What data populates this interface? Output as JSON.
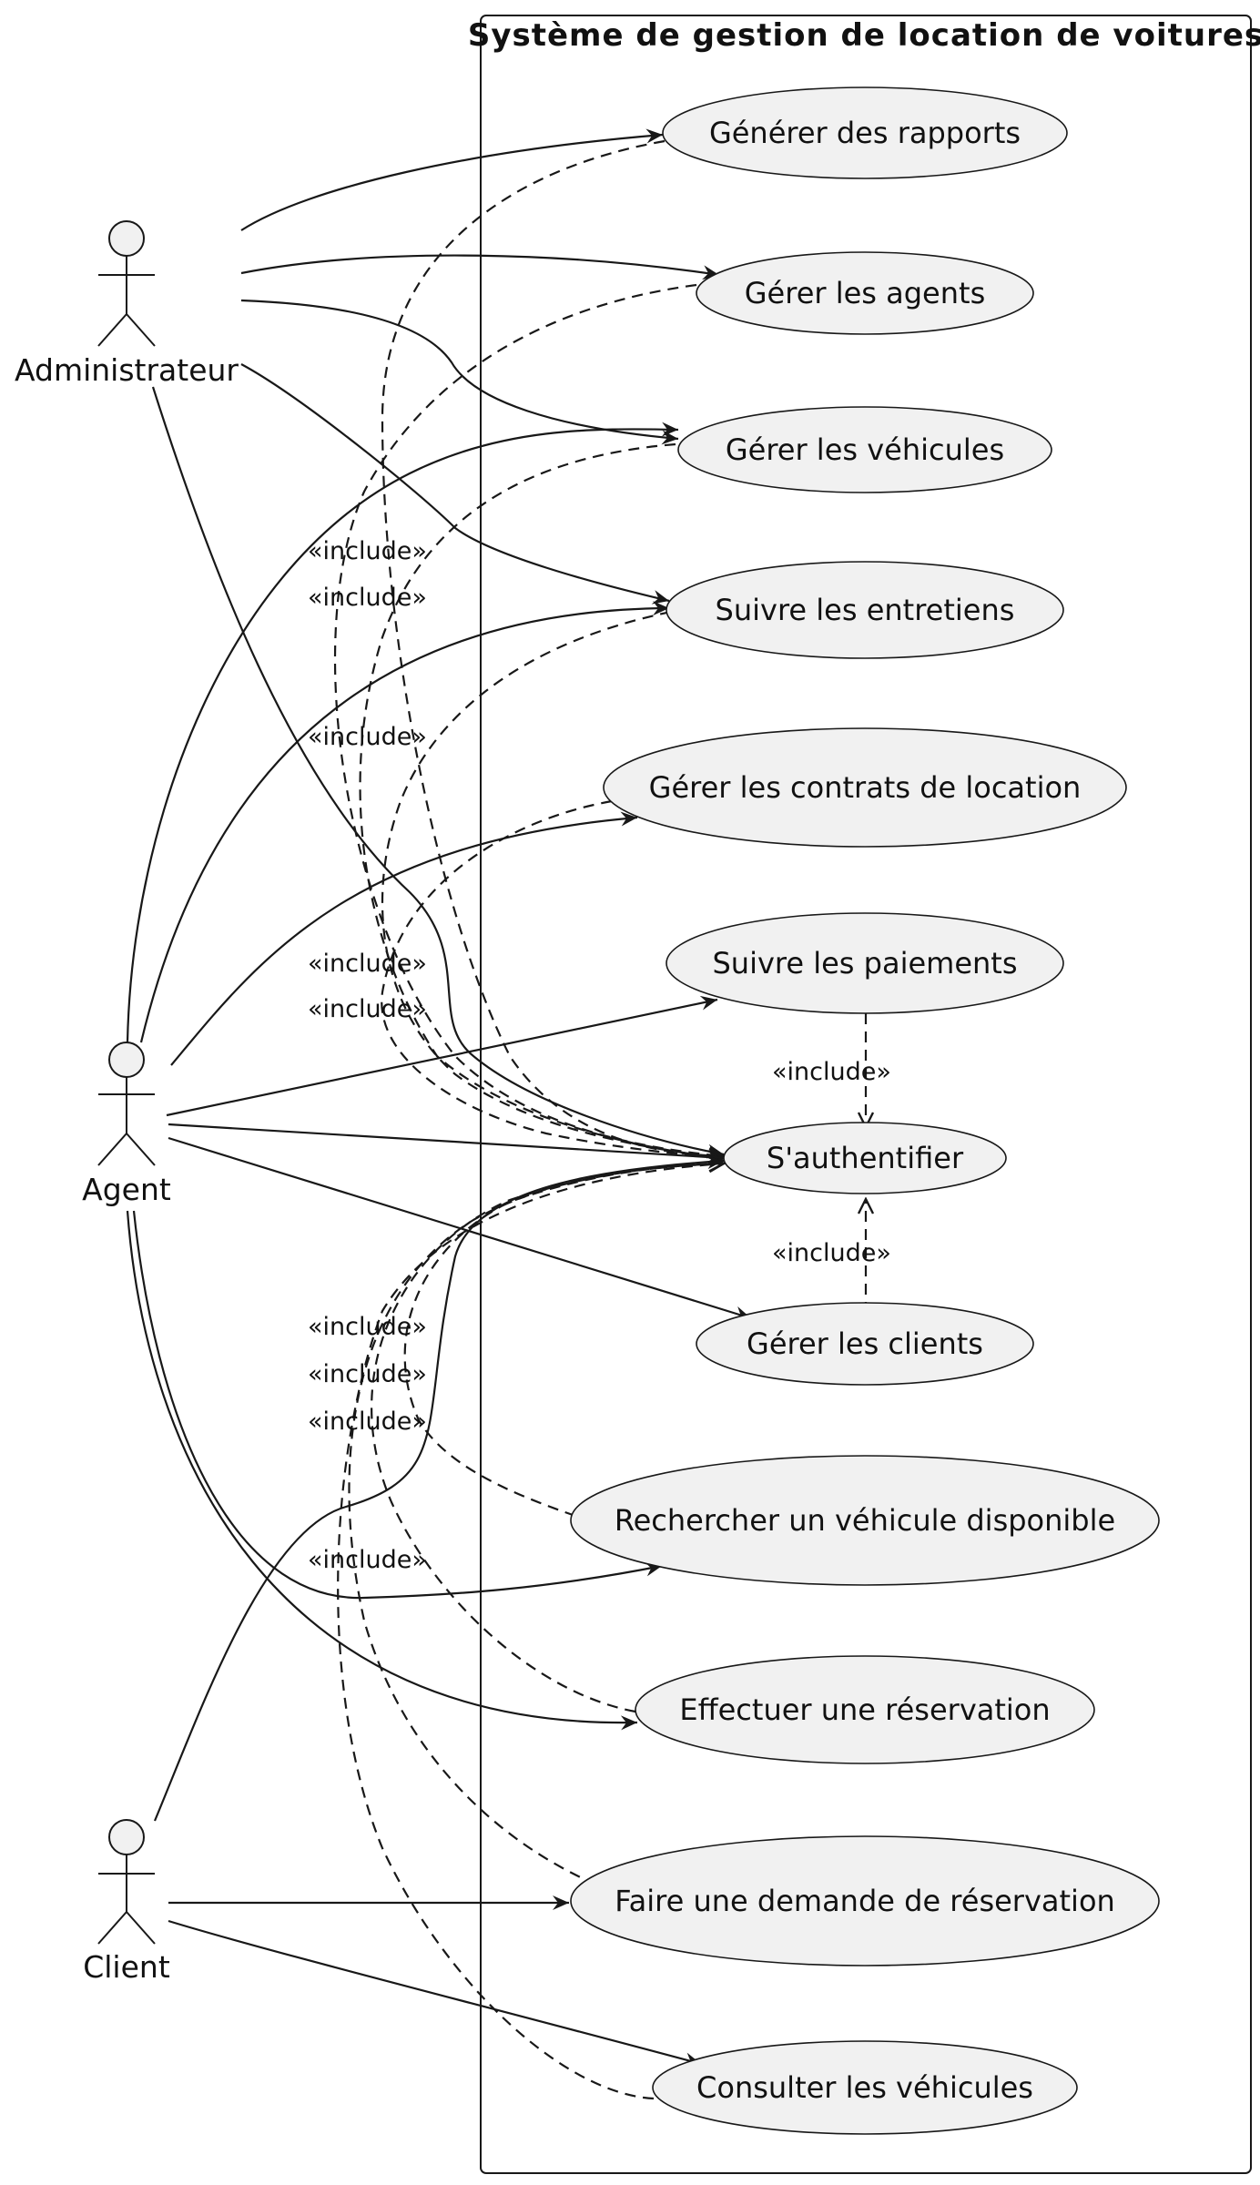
{
  "system": {
    "title": "Système de gestion de location de voitures"
  },
  "actors": {
    "administrateur": "Administrateur",
    "agent": "Agent",
    "client": "Client"
  },
  "use_cases": {
    "generer_rapports": "Générer des rapports",
    "gerer_agents": "Gérer les agents",
    "gerer_vehicules": "Gérer les véhicules",
    "suivre_entretiens": "Suivre les entretiens",
    "gerer_contrats": "Gérer les contrats de location",
    "suivre_paiements": "Suivre les paiements",
    "authentifier": "S'authentifier",
    "gerer_clients": "Gérer les clients",
    "rechercher_vehicule": "Rechercher un véhicule disponible",
    "effectuer_reservation": "Effectuer une réservation",
    "demande_reservation": "Faire une demande de réservation",
    "consulter_vehicules": "Consulter les véhicules"
  },
  "stereotype": "«include»"
}
